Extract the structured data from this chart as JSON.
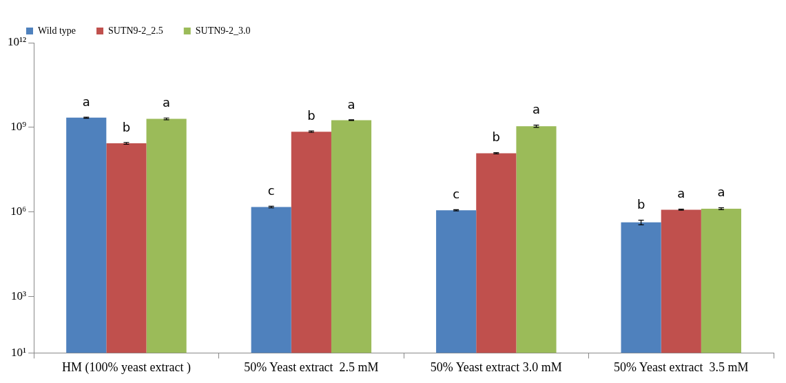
{
  "chart_data": {
    "type": "bar",
    "log": true,
    "categories": [
      "HM (100% yeast extract )",
      "50% Yeast extract  2.5 mM",
      "50% Yeast extract 3.0 mM",
      "50% Yeast extract  3.5 mM"
    ],
    "series": [
      {
        "name": "Wild type",
        "color": "#4f81bd",
        "values": [
          2200000000,
          1500000,
          1150000,
          430000
        ],
        "errors": [
          100000000,
          100000,
          60000,
          80000
        ],
        "value_labels": [
          "a",
          "c",
          "c",
          "b"
        ]
      },
      {
        "name": "SUTN9-2_2.5",
        "color": "#c0504d",
        "values": [
          270000000,
          700000000,
          120000000,
          1200000
        ],
        "errors": [
          20000000,
          40000000,
          6000000,
          50000
        ],
        "value_labels": [
          "b",
          "b",
          "b",
          "a"
        ]
      },
      {
        "name": "SUTN9-2_3.0",
        "color": "#9bbb59",
        "values": [
          2000000000,
          1800000000,
          1100000000,
          1300000
        ],
        "errors": [
          150000000,
          50000000,
          100000000,
          100000
        ],
        "value_labels": [
          "a",
          "a",
          "a",
          "a"
        ]
      }
    ],
    "ylim": [
      10,
      1000000000000
    ],
    "yticks": [
      {
        "value": 10,
        "label": "10¹"
      },
      {
        "value": 1000,
        "label": "10³"
      },
      {
        "value": 1000000,
        "label": "10⁶"
      },
      {
        "value": 1000000000,
        "label": "10⁹"
      },
      {
        "value": 1000000000000,
        "label": "10¹²"
      }
    ],
    "grid": false,
    "legend": "top left"
  }
}
